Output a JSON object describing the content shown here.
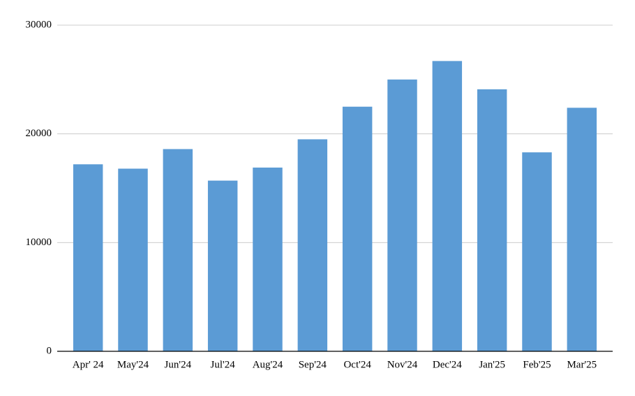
{
  "chart_data": {
    "type": "bar",
    "categories": [
      "Apr' 24",
      "May'24",
      "Jun'24",
      "Jul'24",
      "Aug'24",
      "Sep'24",
      "Oct'24",
      "Nov'24",
      "Dec'24",
      "Jan'25",
      "Feb'25",
      "Mar'25"
    ],
    "values": [
      17200,
      16800,
      18600,
      15700,
      16900,
      19500,
      22500,
      25000,
      26700,
      24100,
      18300,
      22400
    ],
    "color": "#5b9bd5",
    "ylim": [
      0,
      30000
    ],
    "yticks": [
      0,
      10000,
      20000,
      30000
    ],
    "grid": true
  }
}
